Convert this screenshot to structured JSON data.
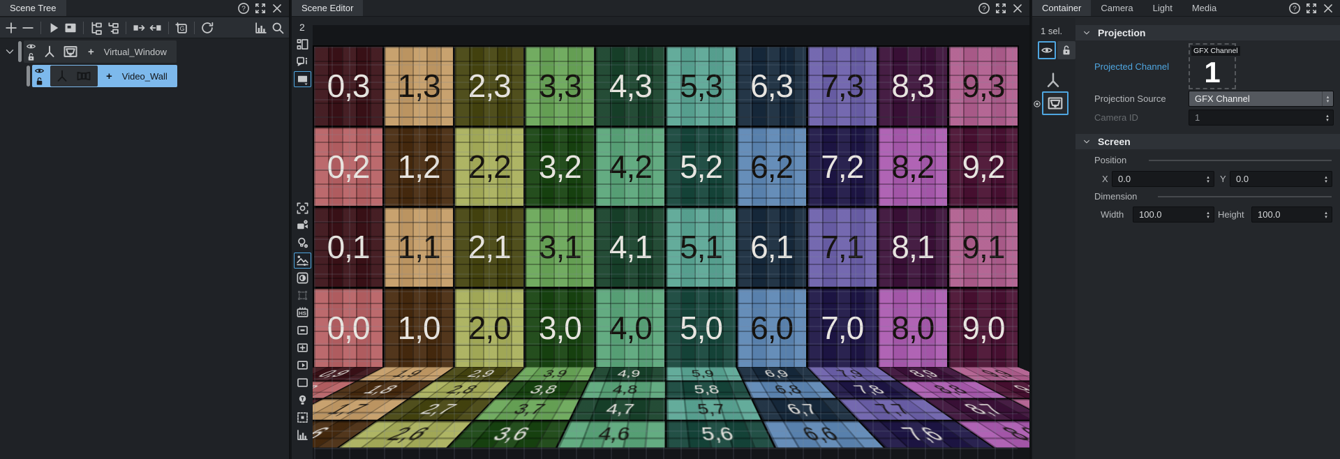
{
  "scene_tree": {
    "title": "Scene Tree",
    "header_icons": [
      "help",
      "maximize",
      "close"
    ],
    "toolbar_icons": [
      {
        "name": "add-node",
        "icon": "plus",
        "sep_after": false
      },
      {
        "name": "remove-node",
        "icon": "minus",
        "sep_after": true
      },
      {
        "name": "play",
        "icon": "play",
        "sep_after": false
      },
      {
        "name": "stop-frame",
        "icon": "frame",
        "sep_after": true
      },
      {
        "name": "expand-tree",
        "icon": "tree-expand",
        "sep_after": false
      },
      {
        "name": "collapse-tree",
        "icon": "tree-collapse",
        "sep_after": true
      },
      {
        "name": "move-node-out",
        "icon": "move-right",
        "sep_after": false
      },
      {
        "name": "move-node-in",
        "icon": "move-left",
        "sep_after": true
      },
      {
        "name": "add-group",
        "icon": "add-group",
        "sep_after": true
      },
      {
        "name": "reload",
        "icon": "refresh",
        "sep_after": false
      }
    ],
    "toolbar_right_icons": [
      {
        "name": "performance",
        "icon": "chart"
      },
      {
        "name": "search",
        "icon": "search"
      }
    ],
    "rows": [
      {
        "label": "Virtual_Window",
        "prefix": "+",
        "selected": false,
        "type_icons": [
          "axis",
          "screen-projection"
        ]
      },
      {
        "label": "Video_Wall",
        "prefix": "+",
        "selected": true,
        "type_icons": [
          "axis",
          "video-wall"
        ]
      }
    ]
  },
  "scene_editor": {
    "title": "Scene Editor",
    "channel_indicator": "2",
    "header_icons": [
      "help",
      "maximize",
      "close"
    ],
    "strip_icons": [
      {
        "name": "layout-mode",
        "icon": "layout",
        "state": "normal"
      },
      {
        "name": "editor-info",
        "icon": "info",
        "state": "normal"
      },
      {
        "name": "render-view",
        "icon": "safe-frame",
        "state": "selected"
      },
      {
        "name": "gap",
        "icon": "",
        "state": "gap"
      },
      {
        "name": "camera-reset",
        "icon": "camera-focus",
        "state": "normal"
      },
      {
        "name": "show-cameras",
        "icon": "camera-eye",
        "state": "normal"
      },
      {
        "name": "show-lights",
        "icon": "light-eye",
        "state": "normal"
      },
      {
        "name": "scene-display-options",
        "icon": "image-adjust",
        "state": "selected"
      },
      {
        "name": "contrast-mode",
        "icon": "contrast",
        "state": "normal"
      },
      {
        "name": "transform-gizmo",
        "icon": "transform-handles",
        "state": "disabled"
      },
      {
        "name": "hs-mode",
        "icon": "hs",
        "state": "normal"
      },
      {
        "name": "box-minus-tool",
        "icon": "box-minus",
        "state": "normal"
      },
      {
        "name": "box-plus-tool",
        "icon": "box-plus",
        "state": "normal"
      },
      {
        "name": "box-play-tool",
        "icon": "box-play",
        "state": "normal"
      },
      {
        "name": "bounding-box",
        "icon": "box-empty",
        "state": "normal"
      },
      {
        "name": "lighting-toggle",
        "icon": "bulb",
        "state": "normal"
      },
      {
        "name": "selection-region",
        "icon": "dashed-dot",
        "state": "normal"
      },
      {
        "name": "statistics",
        "icon": "histogram",
        "state": "normal"
      }
    ]
  },
  "viewport": {
    "columns": [
      0,
      1,
      2,
      3,
      4,
      5,
      6,
      7,
      8,
      9
    ],
    "wall_rows": [
      3,
      2,
      1,
      0
    ],
    "floor_rows": [
      9,
      8,
      7,
      6
    ],
    "label_separator": ",",
    "palette_odd_rows": [
      {
        "bg": "#3b1117",
        "fg": "#e8e5e0"
      },
      {
        "bg": "#c59c66",
        "fg": "#16130f"
      },
      {
        "bg": "#45440f",
        "fg": "#e8e5e0"
      },
      {
        "bg": "#69a757",
        "fg": "#16130f"
      },
      {
        "bg": "#17412a",
        "fg": "#e8e5e0"
      },
      {
        "bg": "#5aa795",
        "fg": "#16130f"
      },
      {
        "bg": "#16293c",
        "fg": "#e8e5e0"
      },
      {
        "bg": "#6c60ab",
        "fg": "#16130f"
      },
      {
        "bg": "#3b1038",
        "fg": "#e8e5e0"
      },
      {
        "bg": "#b05e8e",
        "fg": "#16130f"
      }
    ],
    "palette_even_rows": [
      {
        "bg": "#b86164",
        "fg": "#e8e5e0"
      },
      {
        "bg": "#472a0e",
        "fg": "#e8e5e0"
      },
      {
        "bg": "#a9b05b",
        "fg": "#16130f"
      },
      {
        "bg": "#174310",
        "fg": "#e8e5e0"
      },
      {
        "bg": "#5aa77a",
        "fg": "#16130f"
      },
      {
        "bg": "#15453a",
        "fg": "#e8e5e0"
      },
      {
        "bg": "#5d87b5",
        "fg": "#16130f"
      },
      {
        "bg": "#1d1545",
        "fg": "#e8e5e0"
      },
      {
        "bg": "#ab5ab0",
        "fg": "#16130f"
      },
      {
        "bg": "#491031",
        "fg": "#e8e5e0"
      }
    ]
  },
  "inspector": {
    "tabs": [
      {
        "label": "Container",
        "active": true
      },
      {
        "label": "Camera",
        "active": false
      },
      {
        "label": "Light",
        "active": false
      },
      {
        "label": "Media",
        "active": false
      }
    ],
    "header_icons": [
      "help",
      "maximize",
      "close"
    ],
    "selection_count": "1 sel.",
    "projection": {
      "title": "Projection",
      "projected_channel_label": "Projected Channel",
      "channel_badge_label": "GFX Channel",
      "channel_badge_number": "1",
      "source_label": "Projection Source",
      "source_value": "GFX Channel",
      "camera_id_label": "Camera ID",
      "camera_id_value": "1"
    },
    "screen": {
      "title": "Screen",
      "position_label": "Position",
      "x_label": "X",
      "x_value": "0.0",
      "y_label": "Y",
      "y_value": "0.0",
      "dimension_label": "Dimension",
      "width_label": "Width",
      "width_value": "100.0",
      "height_label": "Height",
      "height_value": "100.0"
    },
    "accent_color": "#4fa6e0",
    "selection_color": "#7db9ec"
  }
}
